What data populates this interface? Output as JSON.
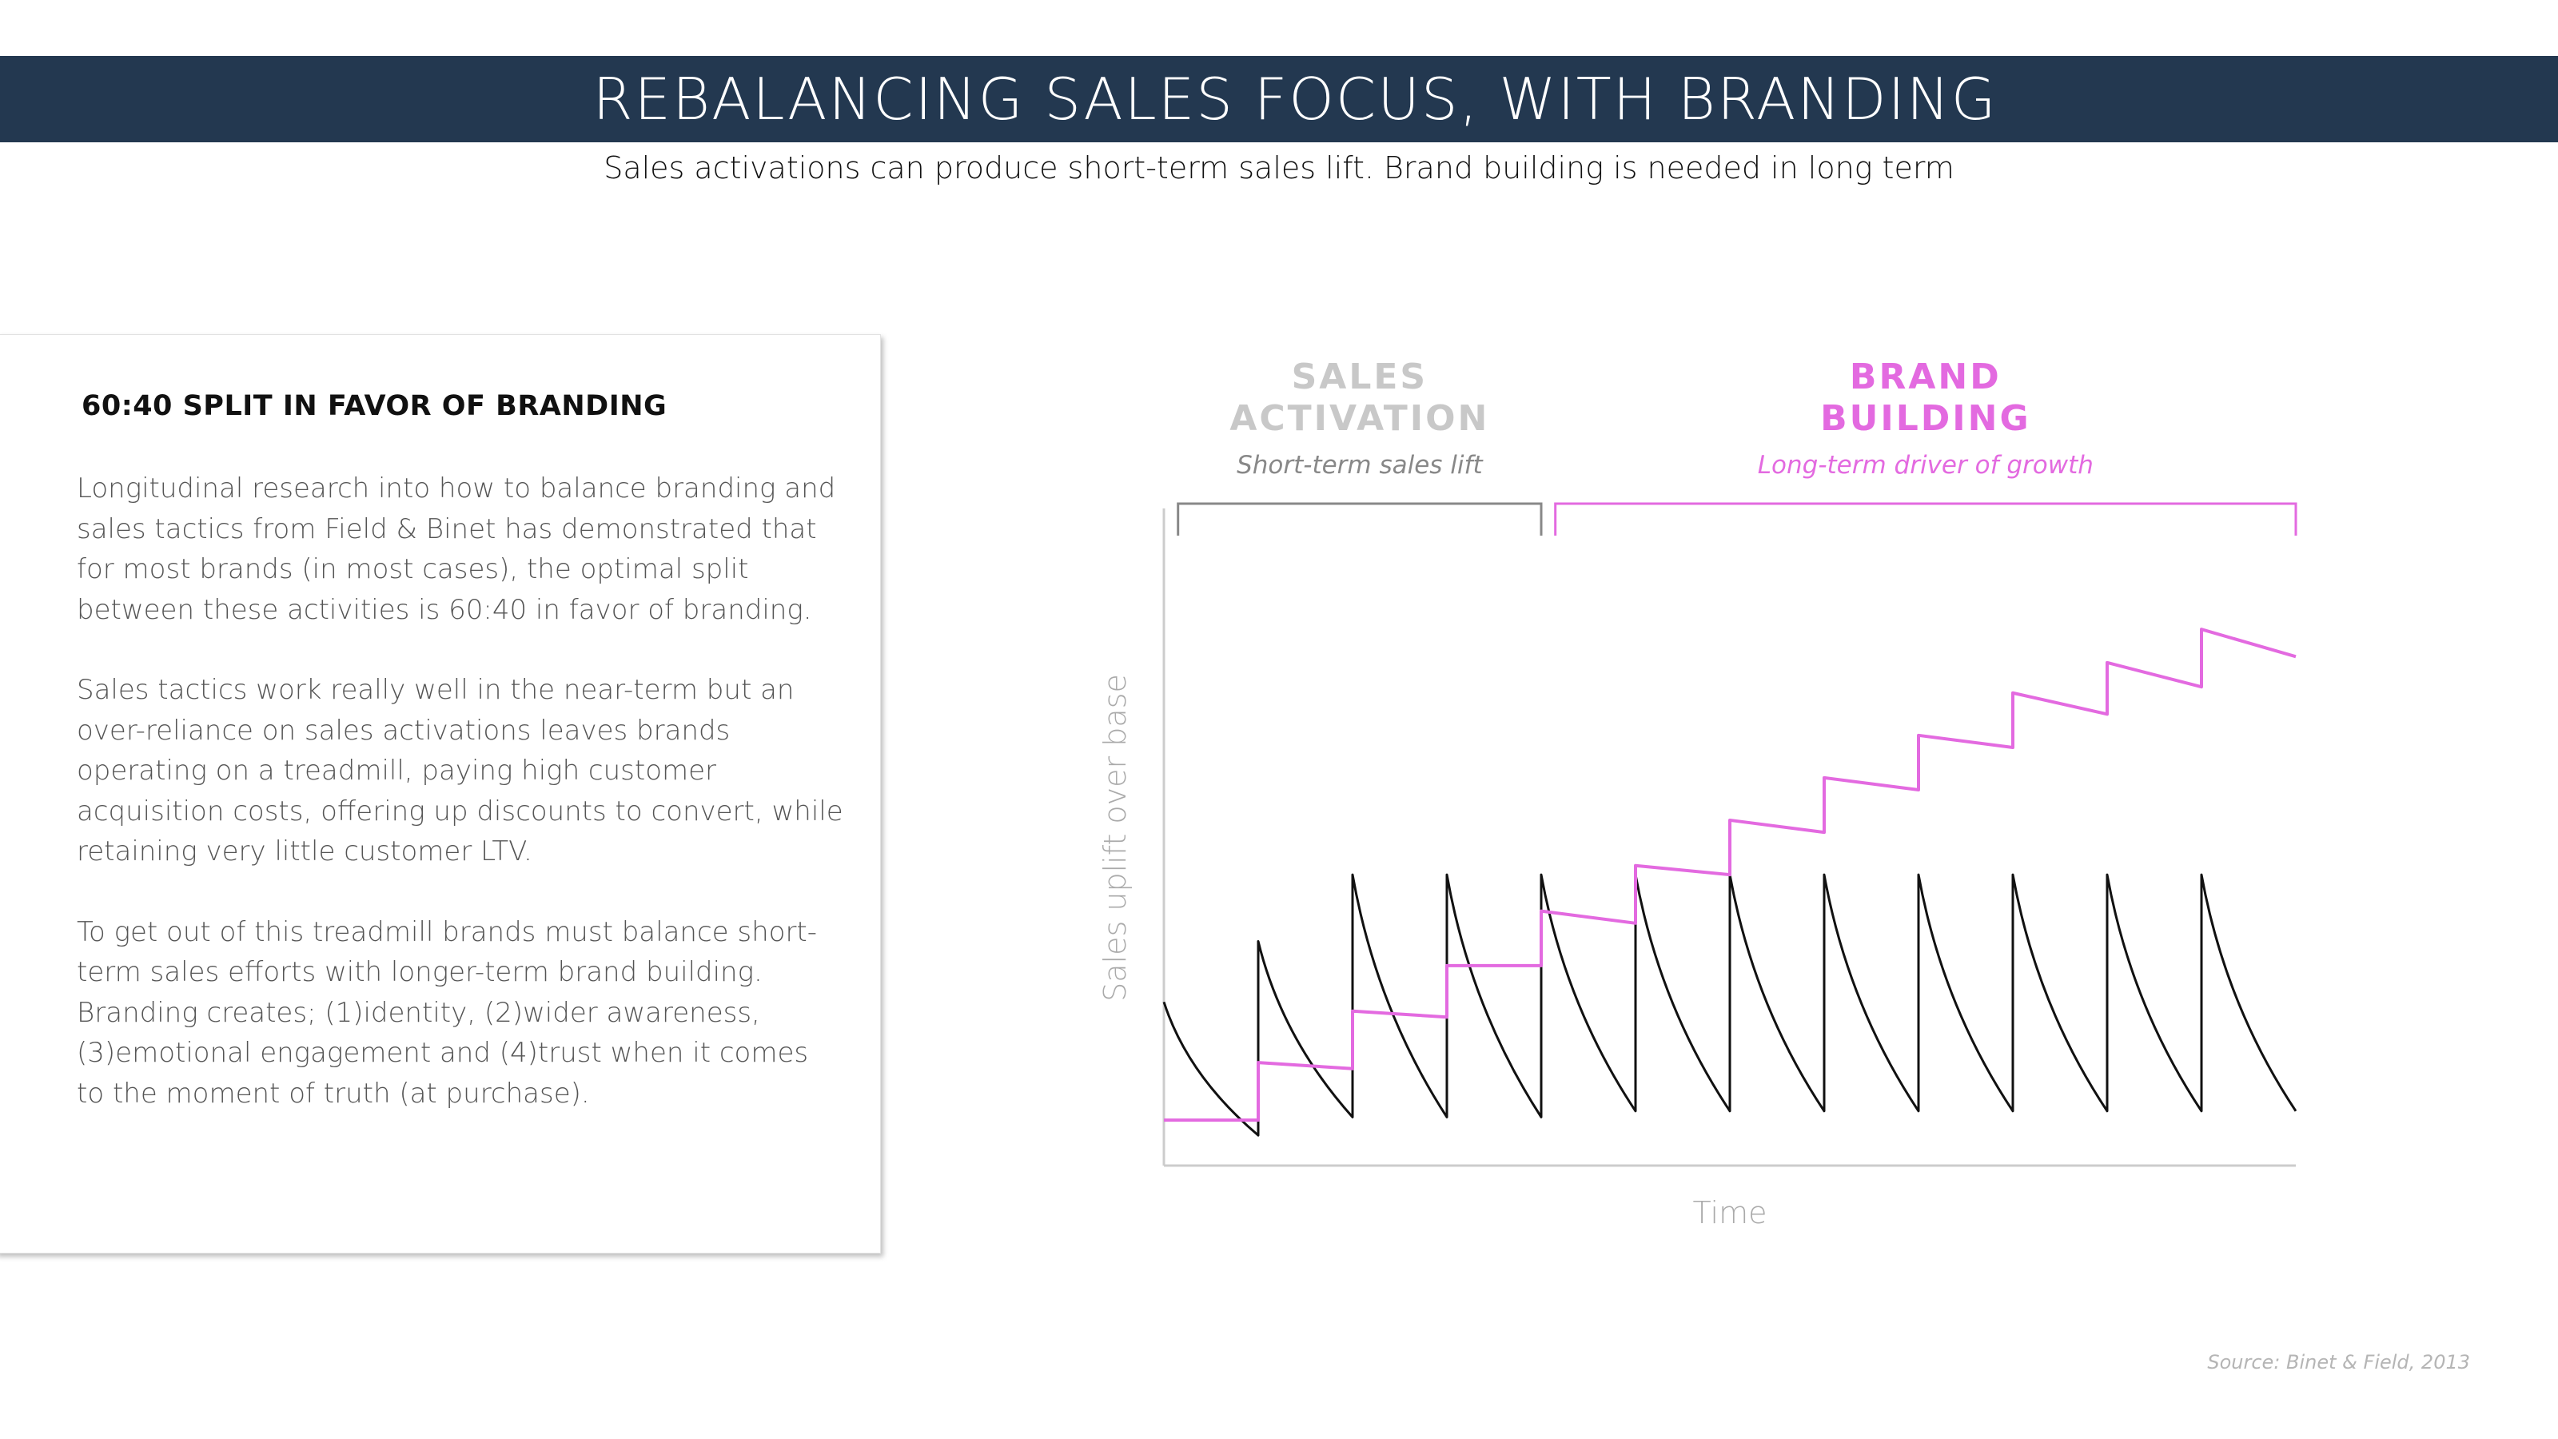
{
  "header": {
    "title": "REBALANCING SALES FOCUS, WITH BRANDING",
    "subtitle": "Sales activations can produce short-term sales lift. Brand building is needed in long term"
  },
  "card": {
    "heading": "60:40 SPLIT IN FAVOR OF BRANDING",
    "paragraphs": [
      "Longitudinal research into how to balance branding and sales tactics from Field & Binet has demonstrated that for most brands (in most cases), the optimal split between these activities is 60:40 in favor of branding.",
      "Sales tactics work really well in the near-term but an over-reliance on sales activations leaves brands operating on a treadmill, paying high customer acquisition costs, offering up discounts to convert, while retaining very little customer LTV.",
      "To get out of this treadmill brands must balance short-term sales efforts with longer-term brand building. Branding creates; (1)identity, (2)wider awareness, (3)emotional engagement and (4)trust when it comes to the moment of truth (at purchase)."
    ]
  },
  "colors": {
    "header_bg": "#233850",
    "brand": "#e36ae0",
    "sales_label": "#c8c8c8",
    "sales_line": "#111111",
    "axis": "#cccccc"
  },
  "chart_data": {
    "type": "line",
    "xlabel": "Time",
    "ylabel": "Sales uplift over base",
    "x_range": [
      0,
      12
    ],
    "y_range": [
      0,
      10
    ],
    "grid": false,
    "legend": "none",
    "annotations": {
      "sales": {
        "title_line1": "SALES",
        "title_line2": "ACTIVATION",
        "caption": "Short-term sales lift",
        "span": [
          0.15,
          4.0
        ]
      },
      "brand": {
        "title_line1": "BRAND",
        "title_line2": "BUILDING",
        "caption": "Long-term driver of growth",
        "span": [
          4.15,
          12
        ]
      }
    },
    "series": [
      {
        "key": "sales",
        "color": "#111111",
        "points": [
          [
            0,
            2.7
          ],
          [
            1,
            0.5
          ],
          [
            1,
            3.7
          ],
          [
            2,
            0.8
          ],
          [
            2,
            4.8
          ],
          [
            3,
            0.8
          ],
          [
            3,
            4.8
          ],
          [
            4,
            0.8
          ],
          [
            4,
            4.8
          ],
          [
            5,
            0.9
          ],
          [
            5,
            4.8
          ],
          [
            6,
            0.9
          ],
          [
            6,
            4.8
          ],
          [
            7,
            0.9
          ],
          [
            7,
            4.8
          ],
          [
            8,
            0.9
          ],
          [
            8,
            4.8
          ],
          [
            9,
            0.9
          ],
          [
            9,
            4.8
          ],
          [
            10,
            0.9
          ],
          [
            10,
            4.8
          ],
          [
            11,
            0.9
          ],
          [
            11,
            4.8
          ],
          [
            12,
            0.9
          ]
        ]
      },
      {
        "key": "brand",
        "color": "#e36ae0",
        "points": [
          [
            0,
            0.75
          ],
          [
            1,
            0.75
          ],
          [
            1,
            1.7
          ],
          [
            2,
            1.6
          ],
          [
            2,
            2.55
          ],
          [
            3,
            2.45
          ],
          [
            3,
            3.3
          ],
          [
            4,
            3.3
          ],
          [
            4,
            4.2
          ],
          [
            5,
            4.0
          ],
          [
            5,
            4.95
          ],
          [
            6,
            4.8
          ],
          [
            6,
            5.7
          ],
          [
            7,
            5.5
          ],
          [
            7,
            6.4
          ],
          [
            8,
            6.2
          ],
          [
            8,
            7.1
          ],
          [
            9,
            6.9
          ],
          [
            9,
            7.8
          ],
          [
            10,
            7.45
          ],
          [
            10,
            8.3
          ],
          [
            11,
            7.9
          ],
          [
            11,
            8.85
          ],
          [
            12,
            8.4
          ]
        ]
      }
    ]
  },
  "source": "Source: Binet & Field, 2013"
}
